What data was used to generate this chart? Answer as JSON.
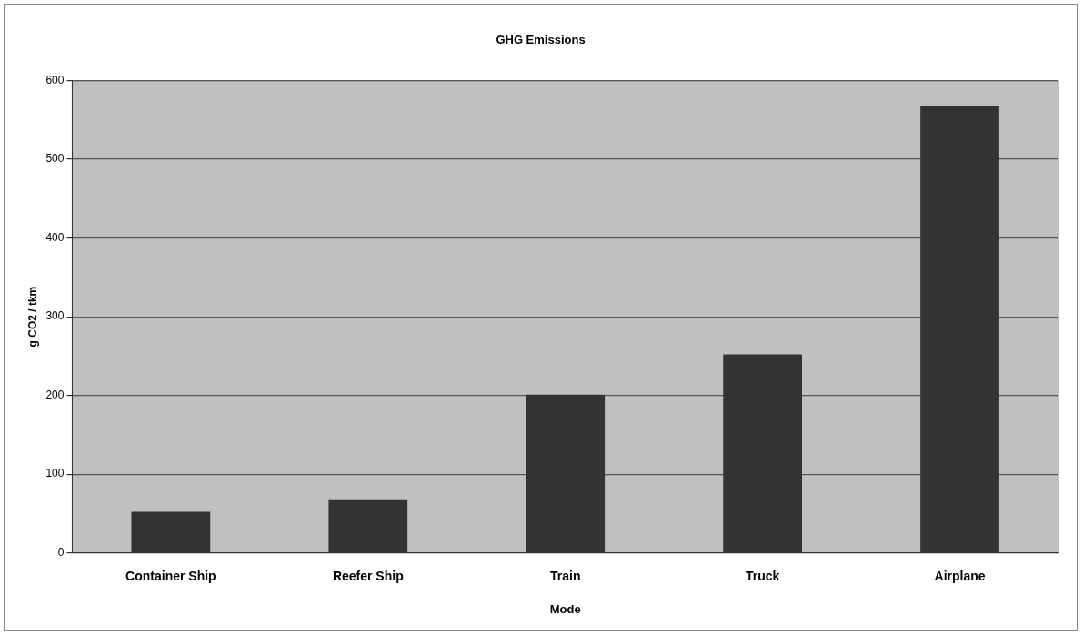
{
  "chart_data": {
    "type": "bar",
    "title": "GHG Emissions",
    "xlabel": "Mode",
    "ylabel": "g CO2 / tkm",
    "categories": [
      "Container Ship",
      "Reefer Ship",
      "Train",
      "Truck",
      "Airplane"
    ],
    "values": [
      52,
      68,
      201,
      252,
      568
    ],
    "color": "#333333",
    "ylim": [
      0,
      600
    ],
    "yticks": [
      0,
      100,
      200,
      300,
      400,
      500,
      600
    ],
    "grid": "y",
    "legend": false
  }
}
